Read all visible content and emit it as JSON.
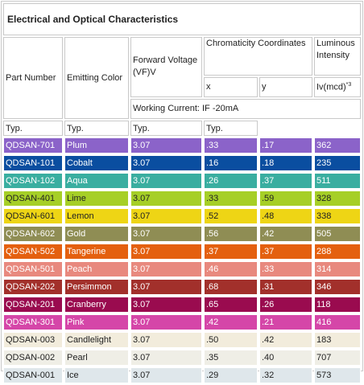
{
  "title": "Electrical and Optical Characteristics",
  "headers": {
    "part_number": "Part Number",
    "emitting_color": "Emitting Color",
    "forward_voltage": "Forward Voltage (VF)V",
    "chromaticity": "Chromaticity Coordinates",
    "luminous": "Luminous Intensity",
    "x": "x",
    "y": "y",
    "iv": "Iv(mcd)",
    "iv_note": "*3",
    "working_current": "Working Current: IF -20mA",
    "typ": "Typ."
  },
  "rows": [
    {
      "part": "QDSAN-701",
      "color": "Plum",
      "vf": "3.07",
      "x": ".33",
      "y": ".17",
      "iv": "362",
      "bg": "#8b63c9",
      "text": "#ffffff"
    },
    {
      "part": "QDSAN-101",
      "color": "Cobalt",
      "vf": "3.07",
      "x": ".16",
      "y": ".18",
      "iv": "235",
      "bg": "#0a4ea0",
      "text": "#ffffff"
    },
    {
      "part": "QDSAN-102",
      "color": "Aqua",
      "vf": "3.07",
      "x": ".26",
      "y": ".37",
      "iv": "511",
      "bg": "#3aaea0",
      "text": "#ffffff"
    },
    {
      "part": "QDSAN-401",
      "color": "Lime",
      "vf": "3.07",
      "x": ".33",
      "y": ".59",
      "iv": "328",
      "bg": "#a6cf27",
      "text": "#222222"
    },
    {
      "part": "QDSAN-601",
      "color": "Lemon",
      "vf": "3.07",
      "x": ".52",
      "y": ".48",
      "iv": "338",
      "bg": "#eed515",
      "text": "#222222"
    },
    {
      "part": "QDSAN-602",
      "color": "Gold",
      "vf": "3.07",
      "x": ".56",
      "y": ".42",
      "iv": "505",
      "bg": "#8f8d54",
      "text": "#ffffff"
    },
    {
      "part": "QDSAN-502",
      "color": "Tangerine",
      "vf": "3.07",
      "x": ".37",
      "y": ".37",
      "iv": "288",
      "bg": "#e4600f",
      "text": "#ffffff"
    },
    {
      "part": "QDSAN-501",
      "color": "Peach",
      "vf": "3.07",
      "x": ".46",
      "y": ".33",
      "iv": "314",
      "bg": "#e8897e",
      "text": "#ffffff"
    },
    {
      "part": "QDSAN-202",
      "color": "Persimmon",
      "vf": "3.07",
      "x": ".68",
      "y": ".31",
      "iv": "346",
      "bg": "#a2302b",
      "text": "#ffffff"
    },
    {
      "part": "QDSAN-201",
      "color": "Cranberry",
      "vf": "3.07",
      "x": ".65",
      "y": ".26",
      "iv": "118",
      "bg": "#9a0b4f",
      "text": "#ffffff"
    },
    {
      "part": "QDSAN-301",
      "color": "Pink",
      "vf": "3.07",
      "x": ".42",
      "y": ".21",
      "iv": "416",
      "bg": "#d546a8",
      "text": "#ffffff"
    },
    {
      "part": "QDSAN-003",
      "color": "Candlelight",
      "vf": "3.07",
      "x": ".50",
      "y": ".42",
      "iv": "183",
      "bg": "#f2ecdc",
      "text": "#222222"
    },
    {
      "part": "QDSAN-002",
      "color": "Pearl",
      "vf": "3.07",
      "x": ".35",
      "y": ".40",
      "iv": "707",
      "bg": "#efeee6",
      "text": "#222222"
    },
    {
      "part": "QDSAN-001",
      "color": "Ice",
      "vf": "3.07",
      "x": ".29",
      "y": ".32",
      "iv": "573",
      "bg": "#dfe7eb",
      "text": "#222222"
    }
  ]
}
